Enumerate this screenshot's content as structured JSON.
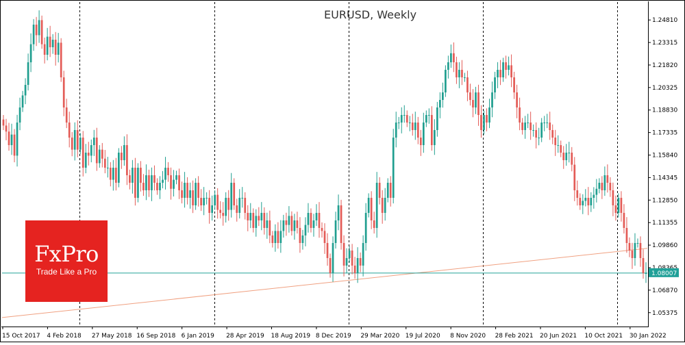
{
  "chart_data": {
    "type": "candlestick",
    "title": "EURUSD, Weekly",
    "ylim": [
      1.045,
      1.26
    ],
    "yticks": [
      "1.24810",
      "1.23315",
      "1.21820",
      "1.20325",
      "1.18830",
      "1.17335",
      "1.15840",
      "1.14345",
      "1.12850",
      "1.11355",
      "1.09860",
      "1.08365",
      "1.06870",
      "1.05375"
    ],
    "xticks": [
      "15 Oct 2017",
      "4 Feb 2018",
      "27 May 2018",
      "16 Sep 2018",
      "6 Jan 2019",
      "28 Apr 2019",
      "18 Aug 2019",
      "8 Dec 2019",
      "29 Mar 2020",
      "19 Jul 2020",
      "8 Nov 2020",
      "28 Feb 2021",
      "20 Jun 2021",
      "10 Oct 2021",
      "30 Jan 2022"
    ],
    "period_separators": [
      "4 Feb 2018",
      "6 Jan 2019",
      "8 Dec 2019",
      "8 Nov 2020",
      "10 Oct 2021"
    ],
    "current_price": "1.08007",
    "current_price_value": 1.08007,
    "trendline": {
      "start": 1.0505,
      "end": 1.0965
    },
    "close_path": [
      1.178,
      1.174,
      1.165,
      1.172,
      1.158,
      1.18,
      1.19,
      1.198,
      1.205,
      1.22,
      1.232,
      1.245,
      1.238,
      1.248,
      1.232,
      1.225,
      1.237,
      1.23,
      1.235,
      1.225,
      1.233,
      1.21,
      1.19,
      1.18,
      1.17,
      1.162,
      1.175,
      1.162,
      1.17,
      1.15,
      1.16,
      1.158,
      1.165,
      1.17,
      1.153,
      1.162,
      1.156,
      1.15,
      1.15,
      1.142,
      1.15,
      1.14,
      1.16,
      1.155,
      1.165,
      1.145,
      1.14,
      1.15,
      1.13,
      1.15,
      1.14,
      1.135,
      1.145,
      1.135,
      1.145,
      1.14,
      1.135,
      1.14,
      1.142,
      1.15,
      1.145,
      1.136,
      1.142,
      1.145,
      1.135,
      1.13,
      1.14,
      1.13,
      1.135,
      1.125,
      1.14,
      1.13,
      1.125,
      1.13,
      1.13,
      1.12,
      1.125,
      1.132,
      1.122,
      1.12,
      1.118,
      1.13,
      1.122,
      1.14,
      1.125,
      1.12,
      1.13,
      1.13,
      1.12,
      1.115,
      1.12,
      1.11,
      1.118,
      1.115,
      1.12,
      1.11,
      1.115,
      1.105,
      1.1,
      1.108,
      1.1,
      1.108,
      1.115,
      1.112,
      1.118,
      1.108,
      1.115,
      1.11,
      1.1,
      1.105,
      1.112,
      1.12,
      1.11,
      1.115,
      1.12,
      1.11,
      1.108,
      1.1,
      1.09,
      1.08,
      1.1,
      1.115,
      1.125,
      1.1,
      1.085,
      1.09,
      1.095,
      1.085,
      1.08,
      1.09,
      1.085,
      1.1,
      1.12,
      1.13,
      1.115,
      1.11,
      1.14,
      1.13,
      1.12,
      1.13,
      1.14,
      1.13,
      1.17,
      1.18,
      1.18,
      1.185,
      1.185,
      1.18,
      1.18,
      1.175,
      1.18,
      1.17,
      1.165,
      1.18,
      1.185,
      1.185,
      1.165,
      1.175,
      1.19,
      1.195,
      1.2,
      1.215,
      1.22,
      1.226,
      1.22,
      1.21,
      1.215,
      1.21,
      1.21,
      1.2,
      1.195,
      1.19,
      1.2,
      1.185,
      1.175,
      1.185,
      1.18,
      1.19,
      1.2,
      1.21,
      1.215,
      1.21,
      1.22,
      1.215,
      1.218,
      1.21,
      1.2,
      1.19,
      1.18,
      1.175,
      1.18,
      1.18,
      1.175,
      1.175,
      1.17,
      1.17,
      1.18,
      1.18,
      1.18,
      1.175,
      1.17,
      1.165,
      1.165,
      1.16,
      1.155,
      1.16,
      1.16,
      1.152,
      1.135,
      1.13,
      1.125,
      1.128,
      1.13,
      1.125,
      1.13,
      1.132,
      1.136,
      1.14,
      1.135,
      1.145,
      1.14,
      1.135,
      1.125,
      1.12,
      1.13,
      1.12,
      1.11,
      1.1,
      1.095,
      1.09,
      1.1,
      1.1,
      1.09,
      1.08,
      1.08
    ]
  }
}
